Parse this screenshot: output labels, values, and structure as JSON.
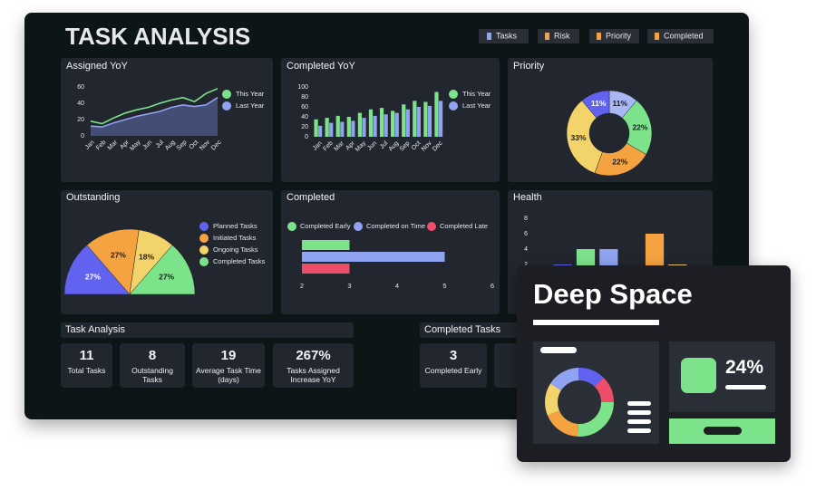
{
  "header": {
    "title": "TASK ANALYSIS",
    "tabs": [
      "Tasks",
      "Risk",
      "Priority",
      "Completed"
    ]
  },
  "chart_data": [
    {
      "type": "area",
      "title": "Assigned YoY",
      "categories": [
        "Jan",
        "Feb",
        "Mar",
        "Apr",
        "May",
        "Jun",
        "Jul",
        "Aug",
        "Sep",
        "Oct",
        "Nov",
        "Dec"
      ],
      "series": [
        {
          "name": "This Year",
          "color": "#7de38a",
          "values": [
            18,
            15,
            22,
            28,
            32,
            35,
            40,
            44,
            47,
            42,
            52,
            58
          ]
        },
        {
          "name": "Last Year",
          "color": "#8fa3f0",
          "values": [
            12,
            11,
            16,
            20,
            24,
            27,
            30,
            35,
            38,
            36,
            38,
            47
          ]
        }
      ],
      "ylim": [
        0,
        60
      ],
      "yticks": [
        0,
        20,
        40,
        60
      ]
    },
    {
      "type": "bar",
      "title": "Completed YoY",
      "categories": [
        "Jan",
        "Feb",
        "Mar",
        "Apr",
        "May",
        "Jun",
        "Jul",
        "Aug",
        "Sep",
        "Oct",
        "Nov",
        "Dec"
      ],
      "series": [
        {
          "name": "This Year",
          "color": "#7de38a",
          "values": [
            35,
            38,
            42,
            40,
            48,
            55,
            58,
            52,
            65,
            72,
            70,
            90
          ]
        },
        {
          "name": "Last Year",
          "color": "#8fa3f0",
          "values": [
            22,
            28,
            30,
            32,
            38,
            42,
            45,
            48,
            55,
            60,
            62,
            72
          ]
        }
      ],
      "ylim": [
        0,
        100
      ],
      "yticks": [
        0,
        20,
        40,
        60,
        80,
        100
      ]
    },
    {
      "type": "donut",
      "title": "Priority",
      "categories": [
        null,
        null,
        null,
        null,
        null
      ],
      "values": [
        11,
        22,
        22,
        33,
        11
      ],
      "value_labels": [
        "11%",
        "22%",
        "22%",
        "33%",
        "11%"
      ],
      "colors": [
        "#a9b8f5",
        "#7de38a",
        "#f5a340",
        "#f2d46b",
        "#6262f0"
      ]
    },
    {
      "type": "semicircle",
      "title": "Outstanding",
      "categories": [
        "Planned Tasks",
        "Initiated Tasks",
        "Ongoing Tasks",
        "Completed Tasks"
      ],
      "values": [
        27,
        27,
        18,
        27
      ],
      "value_labels": [
        "27%",
        "27%",
        "18%",
        "27%"
      ],
      "colors": [
        "#6262f0",
        "#f5a340",
        "#f2d46b",
        "#7de38a"
      ]
    },
    {
      "type": "hbar",
      "title": "Completed",
      "categories": [
        null
      ],
      "series": [
        {
          "name": "Completed Early",
          "color": "#7de38a",
          "values": [
            3
          ]
        },
        {
          "name": "Completed on Time",
          "color": "#8fa3f0",
          "values": [
            5
          ]
        },
        {
          "name": "Completed Late",
          "color": "#ee4d6a",
          "values": [
            3
          ]
        }
      ],
      "xlim": [
        2,
        6
      ],
      "xticks": [
        2,
        3,
        4,
        5,
        6
      ]
    },
    {
      "type": "bar",
      "title": "Health",
      "categories": [
        null,
        null,
        null,
        null,
        null,
        null
      ],
      "values": [
        2,
        4,
        4,
        0,
        6,
        2
      ],
      "colors": [
        "#6262f0",
        "#7de38a",
        "#8fa3f0",
        "#8fa3f0",
        "#f5a340",
        "#f2d46b"
      ],
      "ylim": [
        0,
        8
      ],
      "yticks": [
        2,
        4,
        6,
        8
      ]
    }
  ],
  "task_analysis": {
    "title": "Task Analysis",
    "cards": [
      {
        "value": 11,
        "label": "Total Tasks"
      },
      {
        "value": 8,
        "label": "Outstanding Tasks"
      },
      {
        "value": 19,
        "label": "Average Task Time (days)"
      },
      {
        "value": "267%",
        "label": "Tasks Assigned Increase YoY"
      }
    ]
  },
  "completed_tasks": {
    "title": "Completed Tasks",
    "cards": [
      {
        "value": 3,
        "label": "Completed Early"
      }
    ]
  },
  "overlay": {
    "title": "Deep Space",
    "value": "24%"
  }
}
